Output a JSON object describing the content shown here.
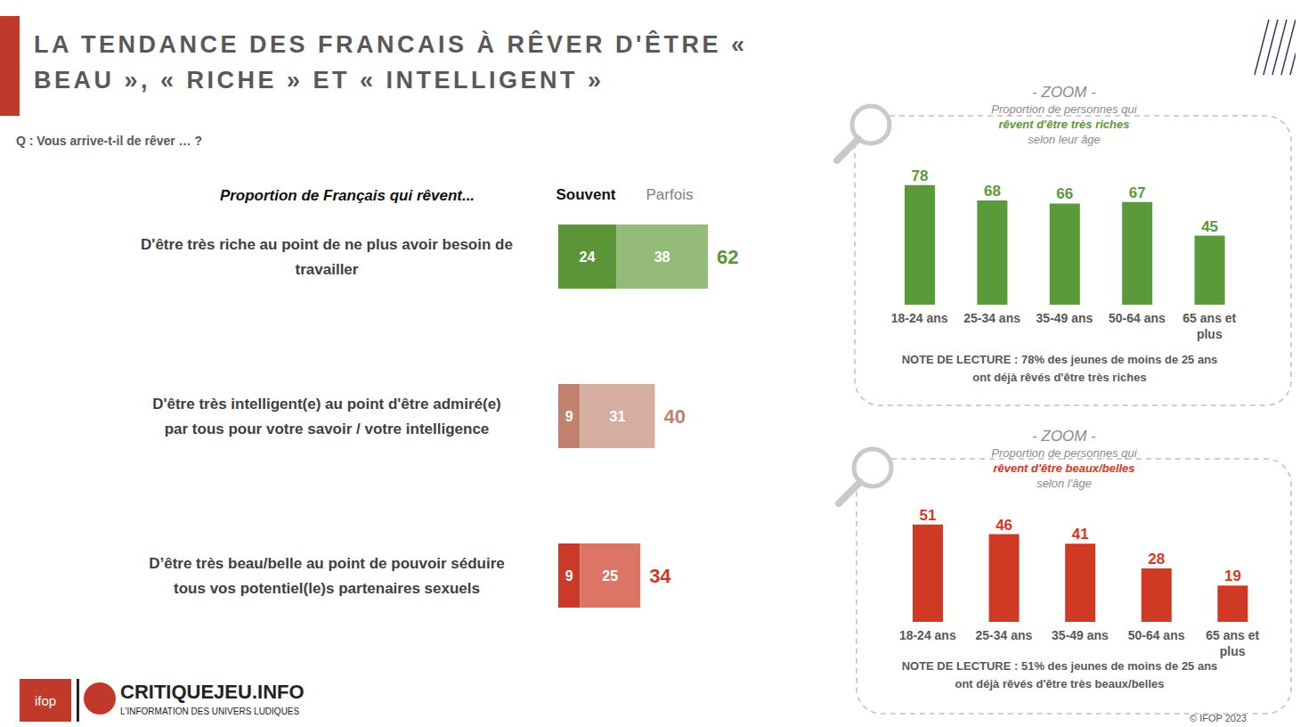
{
  "title": "LA TENDANCE DES FRANCAIS À RÊVER D'ÊTRE « BEAU », « RICHE » ET « INTELLIGENT »",
  "question": "Q : Vous arrive-t-il de rêver … ?",
  "logos": [
    "ifop",
    "CRITIQUEJEU.INFO",
    "L'INFORMATION DES UNIVERS LUDIQUES"
  ],
  "source": "© IFOP 2023",
  "chart_data": [
    {
      "type": "bar",
      "orientation": "horizontal",
      "stacked": true,
      "data_labels": true,
      "tick_labels": "y",
      "legend": "top",
      "subtitle": "Proportion de Français qui rêvent...",
      "categories": [
        "D'être très riche au point de ne plus avoir besoin de travailler",
        "D'être très intelligent(e) au point d'être admiré(e) par tous pour votre savoir / votre intelligence",
        "D’être très beau/belle au point de pouvoir séduire tous vos potentiel(le)s partenaires sexuels"
      ],
      "series": [
        {
          "name": "Souvent",
          "colors": [
            "#5b9537",
            "#c0826f",
            "#c93a2a"
          ],
          "values": [
            24,
            9,
            9
          ]
        },
        {
          "name": "Parfois",
          "colors": [
            "#95bb78",
            "#d5aea1",
            "#dc7565"
          ],
          "values": [
            38,
            31,
            25
          ]
        }
      ],
      "totals": [
        62,
        40,
        34
      ],
      "xlim": [
        0,
        100
      ]
    },
    {
      "type": "bar",
      "title": "- ZOOM -",
      "subtitle": [
        "Proportion de personnes qui",
        "rêvent d'être très riches",
        "selon leur âge"
      ],
      "categories": [
        "18-24 ans",
        "25-34 ans",
        "35-49 ans",
        "50-64 ans",
        "65 ans et plus"
      ],
      "values": [
        78,
        68,
        66,
        67,
        45
      ],
      "color": "#5b9a3a",
      "data_labels": true,
      "tick_labels": "x",
      "ylim": [
        0,
        100
      ],
      "annotation": "NOTE DE LECTURE : 78% des jeunes de moins de 25 ans ont déjà rêvés d'être très riches"
    },
    {
      "type": "bar",
      "title": "- ZOOM -",
      "subtitle": [
        "Proportion de personnes qui",
        "rêvent d'être beaux/belles",
        "selon l'âge"
      ],
      "categories": [
        "18-24 ans",
        "25-34 ans",
        "35-49 ans",
        "50-64 ans",
        "65 ans et plus"
      ],
      "values": [
        51,
        46,
        41,
        28,
        19
      ],
      "color": "#d03a24",
      "data_labels": true,
      "tick_labels": "x",
      "ylim": [
        0,
        100
      ],
      "annotation": "NOTE DE LECTURE : 51% des jeunes de moins de 25 ans ont déjà rêvés d'être très beaux/belles"
    }
  ]
}
